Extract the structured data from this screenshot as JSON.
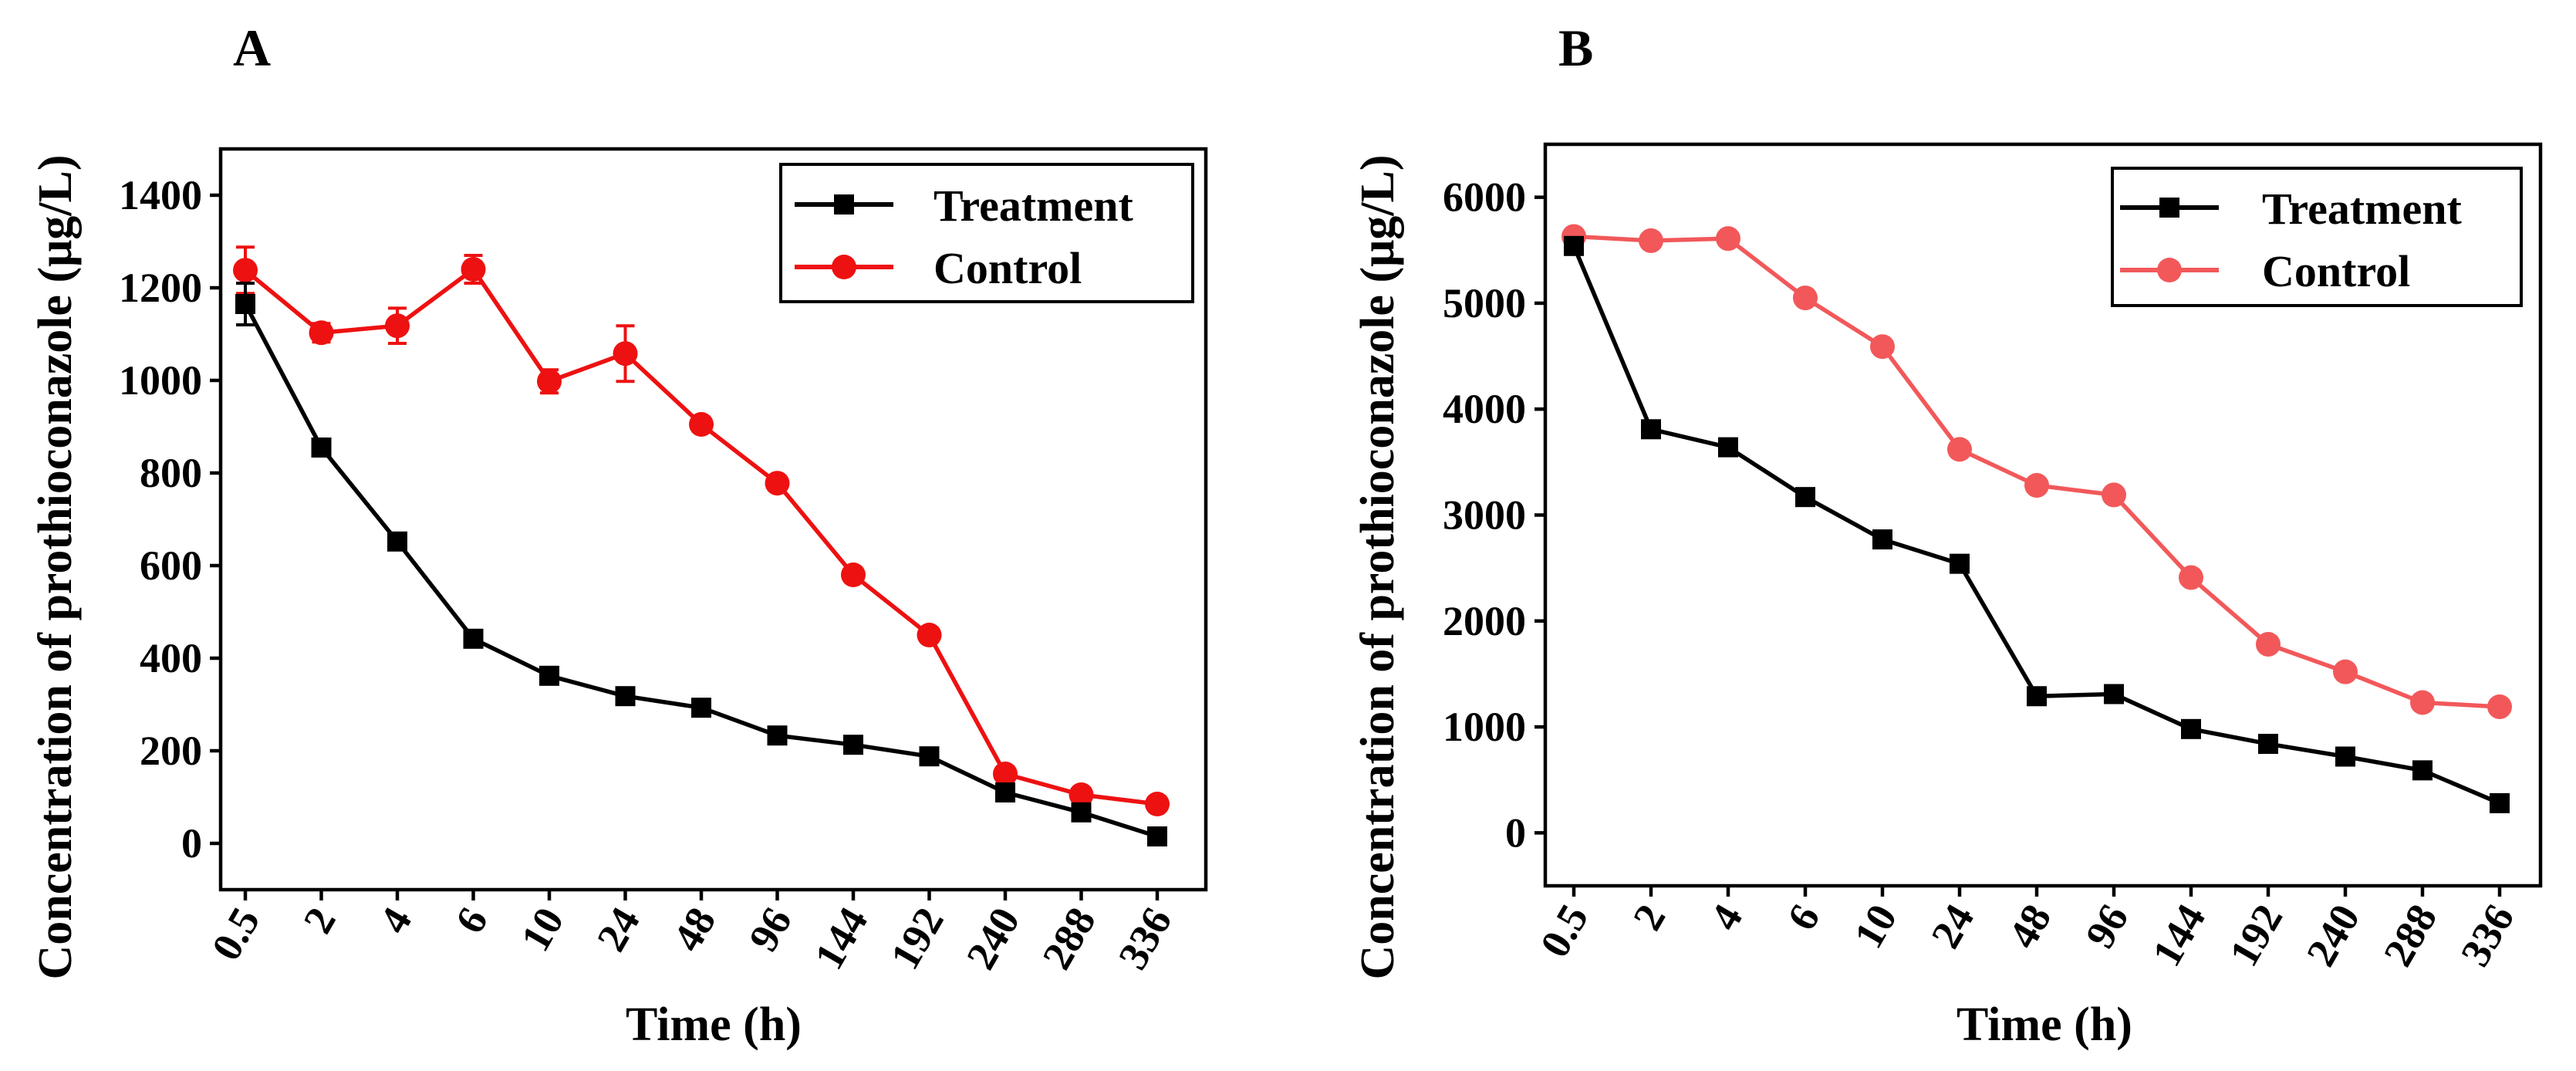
{
  "chart_data": [
    {
      "type": "line",
      "panel_label": "A",
      "xlabel": "Time (h)",
      "ylabel": "Concentration of  prothioconazole (μg/L)",
      "categories": [
        "0.5",
        "2",
        "4",
        "6",
        "10",
        "24",
        "48",
        "96",
        "144",
        "192",
        "240",
        "288",
        "336"
      ],
      "ylim": [
        -100,
        1500
      ],
      "yticks": [
        "0",
        "200",
        "400",
        "600",
        "800",
        "1000",
        "1200",
        "1400"
      ],
      "legend_position": "top-right",
      "series": [
        {
          "name": "Treatment",
          "color": "#000000",
          "marker": "square",
          "values": [
            1165,
            855,
            652,
            442,
            362,
            318,
            293,
            233,
            213,
            188,
            110,
            67,
            15
          ],
          "errors": [
            45,
            10,
            10,
            12,
            10,
            10,
            10,
            10,
            10,
            10,
            10,
            10,
            10
          ]
        },
        {
          "name": "Control",
          "color": "#ee1111",
          "marker": "circle",
          "values": [
            1238,
            1103,
            1118,
            1240,
            998,
            1058,
            905,
            778,
            580,
            450,
            150,
            105,
            85
          ],
          "errors": [
            50,
            20,
            38,
            30,
            25,
            60,
            10,
            10,
            10,
            10,
            10,
            10,
            10
          ]
        }
      ]
    },
    {
      "type": "line",
      "panel_label": "B",
      "xlabel": "Time (h)",
      "ylabel": "Concentration of  prothioconazole (μg/L)",
      "categories": [
        "0.5",
        "2",
        "4",
        "6",
        "10",
        "24",
        "48",
        "96",
        "144",
        "192",
        "240",
        "288",
        "336"
      ],
      "ylim": [
        -500,
        6500
      ],
      "yticks": [
        "0",
        "1000",
        "2000",
        "3000",
        "4000",
        "5000",
        "6000"
      ],
      "legend_position": "top-right",
      "series": [
        {
          "name": "Treatment",
          "color": "#000000",
          "marker": "square",
          "values": [
            5540,
            3810,
            3640,
            3170,
            2770,
            2540,
            1290,
            1310,
            980,
            840,
            720,
            590,
            280
          ]
        },
        {
          "name": "Control",
          "color": "#f2585a",
          "marker": "circle",
          "values": [
            5630,
            5590,
            5610,
            5050,
            4590,
            3620,
            3280,
            3190,
            2410,
            1780,
            1520,
            1230,
            1190
          ]
        }
      ]
    }
  ]
}
